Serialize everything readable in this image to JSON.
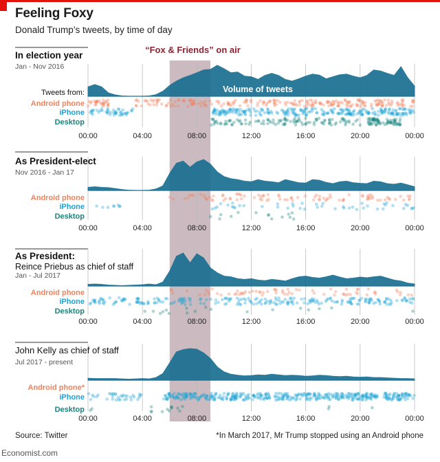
{
  "header": {
    "title": "Feeling Foxy",
    "subtitle": "Donald Trump’s tweets, by time of day"
  },
  "highlight": {
    "label": "“Fox & Friends” on air",
    "start_hour": 6,
    "end_hour": 9
  },
  "volume_label": "Volume of tweets",
  "tweets_from_label": "Tweets from:",
  "footer": {
    "source": "Source: Twitter",
    "note": "*In March 2017, Mr Trump stopped using an Android phone",
    "brand": "Economist.com"
  },
  "colors": {
    "volume": "#1b6f92",
    "android": "#f0825c",
    "iphone": "#1aa3d4",
    "desktop": "#16857f",
    "highlight": "#b9a3ab",
    "highlight_text": "#8b2331",
    "grid": "#bbbbbb"
  },
  "chart_data": {
    "type": "area",
    "x_ticks": [
      "00:00",
      "04:00",
      "08:00",
      "12:00",
      "16:00",
      "20:00",
      "00:00"
    ],
    "x_tick_hours": [
      0,
      4,
      8,
      12,
      16,
      20,
      24
    ],
    "xlim": [
      0,
      24
    ],
    "panels": [
      {
        "title": "In election year",
        "subtitle": "Jan - Nov 2016",
        "sources": [
          {
            "key": "android",
            "label": "Android phone"
          },
          {
            "key": "iphone",
            "label": "iPhone"
          },
          {
            "key": "desktop",
            "label": "Desktop"
          }
        ],
        "volume_hours": [
          0,
          0.5,
          1,
          1.5,
          2,
          2.5,
          3,
          3.5,
          4,
          4.5,
          5,
          5.5,
          6,
          6.5,
          7,
          7.5,
          8,
          8.5,
          9,
          9.5,
          10,
          10.5,
          11,
          11.5,
          12,
          12.5,
          13,
          13.5,
          14,
          14.5,
          15,
          15.5,
          16,
          16.5,
          17,
          17.5,
          18,
          18.5,
          19,
          19.5,
          20,
          20.5,
          21,
          21.5,
          22,
          22.5,
          23,
          23.5,
          24
        ],
        "volume_values": [
          0.28,
          0.35,
          0.28,
          0.1,
          0.04,
          0.01,
          0.0,
          0.0,
          0.0,
          0.01,
          0.05,
          0.15,
          0.32,
          0.45,
          0.55,
          0.62,
          0.7,
          0.78,
          0.8,
          0.92,
          0.82,
          0.7,
          0.72,
          0.6,
          0.58,
          0.5,
          0.62,
          0.68,
          0.62,
          0.5,
          0.45,
          0.52,
          0.6,
          0.66,
          0.63,
          0.52,
          0.58,
          0.64,
          0.66,
          0.6,
          0.55,
          0.62,
          0.78,
          0.75,
          0.68,
          0.62,
          0.88,
          0.55,
          0.3
        ],
        "dot_ranges": {
          "android": [
            [
              0,
              1.6,
              30
            ],
            [
              3.5,
              24,
              230
            ]
          ],
          "iphone": [
            [
              0,
              3.3,
              45
            ],
            [
              9.2,
              24,
              260
            ]
          ],
          "desktop": [
            [
              9,
              20,
              110
            ],
            [
              20.5,
              23,
              70
            ]
          ]
        }
      },
      {
        "title": "As President-elect",
        "subtitle": "Nov 2016 - Jan 17",
        "sources": [
          {
            "key": "android",
            "label": "Android phone"
          },
          {
            "key": "iphone",
            "label": "iPhone"
          },
          {
            "key": "desktop",
            "label": "Desktop"
          }
        ],
        "volume_hours": [
          0,
          0.5,
          1,
          1.5,
          2,
          2.5,
          3,
          3.5,
          4,
          4.5,
          5,
          5.5,
          6,
          6.5,
          7,
          7.5,
          8,
          8.5,
          9,
          9.5,
          10,
          10.5,
          11,
          11.5,
          12,
          12.5,
          13,
          13.5,
          14,
          14.5,
          15,
          15.5,
          16,
          16.5,
          17,
          17.5,
          18,
          18.5,
          19,
          19.5,
          20,
          20.5,
          21,
          21.5,
          22,
          22.5,
          23,
          23.5,
          24
        ],
        "volume_values": [
          0.1,
          0.12,
          0.1,
          0.09,
          0.06,
          0.03,
          0.01,
          0.0,
          0.0,
          0.01,
          0.05,
          0.15,
          0.55,
          0.88,
          0.95,
          0.75,
          0.92,
          1.0,
          0.85,
          0.6,
          0.45,
          0.38,
          0.35,
          0.3,
          0.28,
          0.35,
          0.3,
          0.28,
          0.25,
          0.35,
          0.3,
          0.25,
          0.24,
          0.35,
          0.33,
          0.26,
          0.22,
          0.28,
          0.3,
          0.25,
          0.23,
          0.22,
          0.3,
          0.28,
          0.22,
          0.2,
          0.24,
          0.18,
          0.12
        ],
        "dot_ranges": {
          "android": [
            [
              6,
              24,
              90
            ]
          ],
          "iphone": [
            [
              0.5,
              2.5,
              8
            ],
            [
              9,
              24,
              45
            ]
          ],
          "desktop": [
            [
              9,
              16,
              14
            ]
          ]
        }
      },
      {
        "title": "As President:",
        "subtitle2": "Reince Priebus as chief of staff",
        "subtitle": "Jan - Jul 2017",
        "sources": [
          {
            "key": "android",
            "label": "Android phone"
          },
          {
            "key": "iphone",
            "label": "iPhone"
          },
          {
            "key": "desktop",
            "label": "Desktop"
          }
        ],
        "volume_hours": [
          0,
          0.5,
          1,
          1.5,
          2,
          2.5,
          3,
          3.5,
          4,
          4.5,
          5,
          5.5,
          6,
          6.5,
          7,
          7.5,
          8,
          8.5,
          9,
          9.5,
          10,
          10.5,
          11,
          11.5,
          12,
          12.5,
          13,
          13.5,
          14,
          14.5,
          15,
          15.5,
          16,
          16.5,
          17,
          17.5,
          18,
          18.5,
          19,
          19.5,
          20,
          20.5,
          21,
          21.5,
          22,
          22.5,
          23,
          23.5,
          24
        ],
        "volume_values": [
          0.05,
          0.06,
          0.05,
          0.03,
          0.02,
          0.01,
          0.02,
          0.03,
          0.04,
          0.06,
          0.04,
          0.12,
          0.45,
          0.9,
          1.0,
          0.7,
          0.98,
          0.85,
          0.55,
          0.4,
          0.3,
          0.28,
          0.22,
          0.2,
          0.22,
          0.18,
          0.16,
          0.2,
          0.18,
          0.15,
          0.22,
          0.28,
          0.3,
          0.26,
          0.24,
          0.28,
          0.33,
          0.27,
          0.22,
          0.24,
          0.27,
          0.25,
          0.28,
          0.3,
          0.24,
          0.18,
          0.15,
          0.09,
          0.06
        ],
        "dot_ranges": {
          "android": [
            [
              6,
              24,
              70
            ]
          ],
          "iphone": [
            [
              0,
              24,
              240
            ]
          ],
          "desktop": [
            [
              4,
              9,
              10
            ],
            [
              9,
              24,
              8
            ]
          ]
        }
      },
      {
        "title": "John Kelly as chief of staff",
        "subtitle": "Jul 2017 - present",
        "sources": [
          {
            "key": "android",
            "label": "Android phone*"
          },
          {
            "key": "iphone",
            "label": "iPhone"
          },
          {
            "key": "desktop",
            "label": "Desktop"
          }
        ],
        "volume_hours": [
          0,
          0.5,
          1,
          1.5,
          2,
          2.5,
          3,
          3.5,
          4,
          4.5,
          5,
          5.5,
          6,
          6.5,
          7,
          7.5,
          8,
          8.5,
          9,
          9.5,
          10,
          10.5,
          11,
          11.5,
          12,
          12.5,
          13,
          13.5,
          14,
          14.5,
          15,
          15.5,
          16,
          16.5,
          17,
          17.5,
          18,
          18.5,
          19,
          19.5,
          20,
          20.5,
          21,
          21.5,
          22,
          22.5,
          23,
          23.5,
          24
        ],
        "volume_values": [
          0.06,
          0.05,
          0.05,
          0.05,
          0.05,
          0.04,
          0.03,
          0.04,
          0.05,
          0.04,
          0.08,
          0.2,
          0.52,
          0.85,
          0.92,
          0.95,
          0.93,
          0.82,
          0.65,
          0.4,
          0.25,
          0.18,
          0.15,
          0.13,
          0.14,
          0.16,
          0.15,
          0.18,
          0.16,
          0.14,
          0.15,
          0.14,
          0.12,
          0.13,
          0.15,
          0.14,
          0.12,
          0.11,
          0.12,
          0.1,
          0.09,
          0.1,
          0.08,
          0.08,
          0.07,
          0.06,
          0.05,
          0.05,
          0.04
        ],
        "dot_ranges": {
          "android": [],
          "iphone": [
            [
              0,
              5,
              35
            ],
            [
              5.5,
              24,
              420
            ]
          ],
          "desktop": [
            [
              0,
              0.3,
              2
            ],
            [
              4.5,
              7,
              12
            ],
            [
              15,
              24,
              3
            ]
          ]
        }
      }
    ]
  }
}
